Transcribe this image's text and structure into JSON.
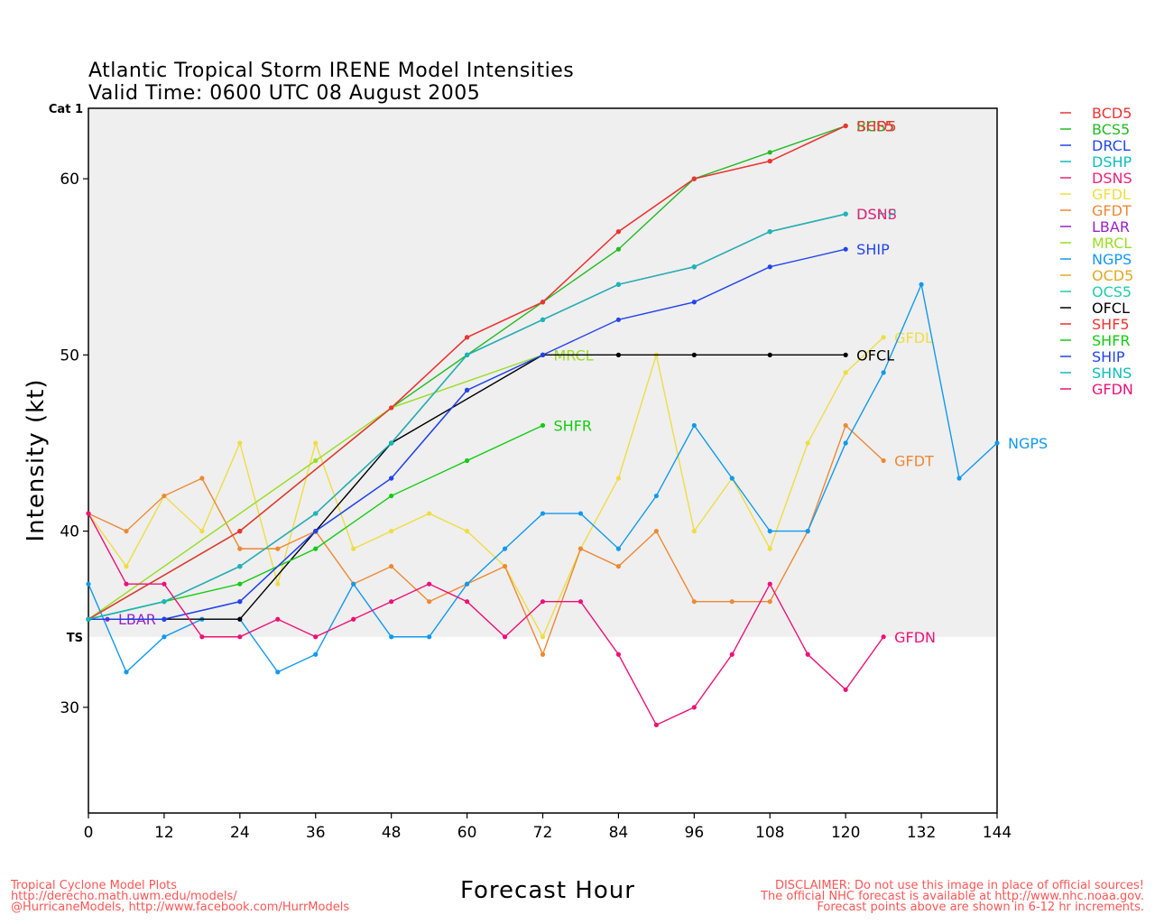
{
  "title_line1": "Atlantic Tropical Storm IRENE Model Intensities",
  "title_line2": "Valid Time: 0600 UTC 08 August 2005",
  "footer_left": [
    "Tropical Cyclone Model Plots",
    "http://derecho.math.uwm.edu/models/",
    "@HurricaneModels, http://www.facebook.com/HurrModels"
  ],
  "footer_right": [
    "DISCLAIMER: Do not use this image in place of official sources!",
    "The official NHC forecast is available at http://www.nhc.noaa.gov.",
    "Forecast points above are shown in 6-12 hr increments."
  ],
  "chart_data": {
    "type": "line",
    "xlabel": "Forecast Hour",
    "ylabel": "Intensity (kt)",
    "xlim": [
      0,
      144
    ],
    "ylim": [
      24,
      64
    ],
    "x_ticks": [
      0,
      12,
      24,
      36,
      48,
      60,
      72,
      84,
      96,
      108,
      120,
      132,
      144
    ],
    "y_ticks": [
      30,
      40,
      50,
      60
    ],
    "category_bands": [
      {
        "label": "TS",
        "threshold": 34,
        "color": "#efefef"
      },
      {
        "label": "Cat 1",
        "threshold": 64,
        "color": "#dcdcdc"
      }
    ],
    "legend_position": "right",
    "series": [
      {
        "name": "BCD5",
        "color": "#ee3333",
        "x": [
          0,
          24,
          48,
          60,
          72,
          84,
          96,
          108,
          120
        ],
        "y": [
          35,
          40,
          47,
          51,
          53,
          57,
          60,
          61,
          63
        ],
        "end_label": "BCD5"
      },
      {
        "name": "BCS5",
        "color": "#22bb22",
        "x": [
          0,
          24,
          48,
          60,
          72,
          84,
          96,
          108,
          120
        ],
        "y": [
          35,
          40,
          47,
          50,
          53,
          56,
          60,
          61.5,
          63
        ],
        "end_label": "BCS5"
      },
      {
        "name": "DRCL",
        "color": "#2244ee",
        "x": [
          0,
          12,
          24,
          36,
          48,
          60,
          72
        ],
        "y": [
          35,
          35,
          36,
          40,
          43,
          48,
          50
        ],
        "end_label": ""
      },
      {
        "name": "DSHP",
        "color": "#11bbbb",
        "x": [
          0,
          12,
          24,
          36,
          48,
          60,
          72,
          84,
          96,
          108,
          120
        ],
        "y": [
          35,
          36,
          38,
          41,
          45,
          50,
          52,
          54,
          55,
          57,
          58
        ],
        "end_label": "DSHP"
      },
      {
        "name": "DSNS",
        "color": "#ee2277",
        "x": [
          0,
          12,
          24,
          36,
          48,
          60,
          72,
          84,
          96,
          108,
          120
        ],
        "y": [
          35,
          36,
          38,
          41,
          45,
          50,
          52,
          54,
          55,
          57,
          58
        ],
        "end_label": "DSNS"
      },
      {
        "name": "GFDL",
        "color": "#eedd44",
        "x": [
          0,
          6,
          12,
          18,
          24,
          30,
          36,
          42,
          48,
          54,
          60,
          66,
          72,
          78,
          84,
          90,
          96,
          102,
          108,
          114,
          120,
          126
        ],
        "y": [
          41,
          38,
          42,
          40,
          45,
          37,
          45,
          39,
          40,
          41,
          40,
          38,
          34,
          39,
          43,
          50,
          40,
          43,
          39,
          45,
          49,
          51
        ],
        "end_label": "GFDL"
      },
      {
        "name": "GFDT",
        "color": "#ee8833",
        "x": [
          0,
          6,
          12,
          18,
          24,
          30,
          36,
          42,
          48,
          54,
          60,
          66,
          72,
          78,
          84,
          90,
          96,
          102,
          108,
          114,
          120,
          126
        ],
        "y": [
          41,
          40,
          42,
          43,
          39,
          39,
          40,
          37,
          38,
          36,
          37,
          38,
          33,
          39,
          38,
          40,
          36,
          36,
          36,
          40,
          46,
          44
        ],
        "end_label": "GFDT"
      },
      {
        "name": "LBAR",
        "color": "#9922cc",
        "x": [
          0,
          3
        ],
        "y": [
          35,
          35
        ],
        "end_label": "LBAR"
      },
      {
        "name": "MRCL",
        "color": "#99dd22",
        "x": [
          0,
          36,
          48,
          72
        ],
        "y": [
          35,
          44,
          47,
          50
        ],
        "end_label": "MRCL"
      },
      {
        "name": "NGPS",
        "color": "#1199ee",
        "x": [
          0,
          6,
          12,
          18,
          24,
          30,
          36,
          42,
          48,
          54,
          60,
          66,
          72,
          78,
          84,
          90,
          96,
          102,
          108,
          114,
          120,
          126,
          132,
          138,
          144
        ],
        "y": [
          37,
          32,
          34,
          35,
          35,
          32,
          33,
          37,
          34,
          34,
          37,
          39,
          41,
          41,
          39,
          42,
          46,
          43,
          40,
          40,
          45,
          49,
          54,
          43,
          45
        ],
        "end_label": "NGPS"
      },
      {
        "name": "OCD5",
        "color": "#ddaa22",
        "x": [],
        "y": [],
        "end_label": ""
      },
      {
        "name": "OCS5",
        "color": "#22ccaa",
        "x": [],
        "y": [],
        "end_label": ""
      },
      {
        "name": "OFCL",
        "color": "#000000",
        "x": [
          0,
          12,
          24,
          36,
          48,
          72,
          84,
          96,
          108,
          120
        ],
        "y": [
          35,
          35,
          35,
          40,
          45,
          50,
          50,
          50,
          50,
          50
        ],
        "end_label": "OFCL"
      },
      {
        "name": "SHF5",
        "color": "#ee3333",
        "x": [
          0,
          24,
          48,
          60,
          72,
          84,
          96,
          108,
          120
        ],
        "y": [
          35,
          40,
          47,
          51,
          53,
          57,
          60,
          61,
          63
        ],
        "end_label": "SHF5"
      },
      {
        "name": "SHFR",
        "color": "#11cc11",
        "x": [
          0,
          12,
          24,
          36,
          48,
          60,
          72
        ],
        "y": [
          35,
          36,
          37,
          39,
          42,
          44,
          46
        ],
        "end_label": "SHFR"
      },
      {
        "name": "SHIP",
        "color": "#2244ee",
        "x": [
          0,
          12,
          24,
          36,
          48,
          60,
          72,
          84,
          96,
          108,
          120
        ],
        "y": [
          35,
          35,
          36,
          40,
          43,
          48,
          50,
          52,
          53,
          55,
          56
        ],
        "end_label": "SHIP"
      },
      {
        "name": "SHNS",
        "color": "#11bbbb",
        "x": [
          0,
          12,
          24,
          36,
          48,
          60,
          72,
          84,
          96,
          108,
          120
        ],
        "y": [
          35,
          36,
          38,
          41,
          45,
          50,
          52,
          54,
          55,
          57,
          58
        ],
        "end_label": ""
      },
      {
        "name": "GFDN",
        "color": "#ee1177",
        "x": [
          0,
          6,
          12,
          18,
          24,
          30,
          36,
          42,
          48,
          54,
          60,
          66,
          72,
          78,
          84,
          90,
          96,
          102,
          108,
          114,
          120,
          126
        ],
        "y": [
          41,
          37,
          37,
          34,
          34,
          35,
          34,
          35,
          36,
          37,
          36,
          34,
          36,
          36,
          33,
          29,
          30,
          33,
          37,
          33,
          31,
          34
        ],
        "end_label": "GFDN"
      }
    ]
  }
}
